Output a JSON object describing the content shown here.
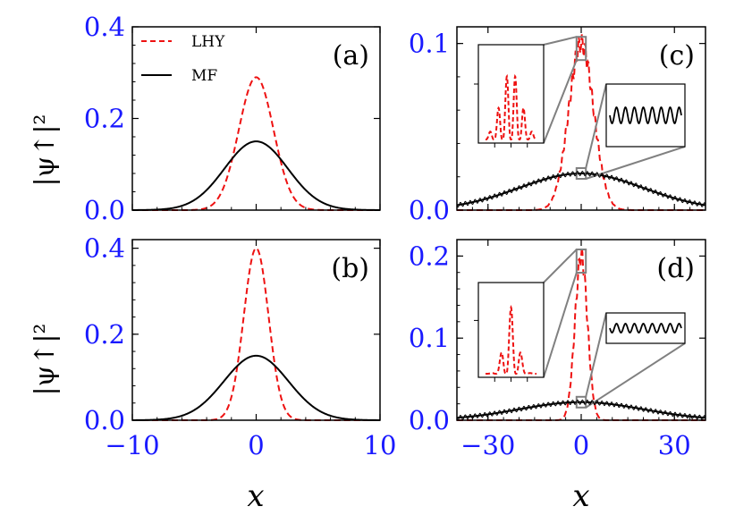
{
  "figure": {
    "ylabel": "|ψ↑|²",
    "xlabel": "x"
  },
  "colors": {
    "lhy": "#ee1111",
    "mf": "#000000",
    "tick_text": "#1a1aff",
    "inset_box": "#808080"
  },
  "legend": {
    "lhy": "LHY",
    "mf": "MF"
  },
  "chart_data": [
    {
      "panel": "(a)",
      "type": "line",
      "xlim": [
        -10,
        10
      ],
      "ylim": [
        0,
        0.4
      ],
      "xticks": [
        -10,
        0,
        10
      ],
      "xtick_labels": [
        "",
        "",
        ""
      ],
      "yticks": [
        0,
        0.2,
        0.4
      ],
      "ytick_labels": [
        "0.0",
        "0.2",
        "0.4"
      ],
      "series": [
        {
          "name": "LHY",
          "style": "dashed",
          "model": "gaussian",
          "amplitude": 0.29,
          "width": 1.4
        },
        {
          "name": "MF",
          "style": "solid",
          "model": "gaussian",
          "amplitude": 0.15,
          "width": 2.55
        }
      ]
    },
    {
      "panel": "(b)",
      "type": "line",
      "xlim": [
        -10,
        10
      ],
      "ylim": [
        0,
        0.42
      ],
      "xticks": [
        -10,
        0,
        10
      ],
      "xtick_labels": [
        "−10",
        "0",
        "10"
      ],
      "yticks": [
        0,
        0.2,
        0.4
      ],
      "ytick_labels": [
        "0.0",
        "0.2",
        "0.4"
      ],
      "series": [
        {
          "name": "LHY",
          "style": "dashed",
          "model": "gaussian",
          "amplitude": 0.4,
          "width": 1.0
        },
        {
          "name": "MF",
          "style": "solid",
          "model": "gaussian",
          "amplitude": 0.15,
          "width": 2.6
        }
      ]
    },
    {
      "panel": "(c)",
      "type": "line",
      "xlim": [
        -40,
        40
      ],
      "ylim": [
        0,
        0.11
      ],
      "xticks": [
        -30,
        0,
        30
      ],
      "xtick_labels": [
        "",
        "",
        ""
      ],
      "yticks": [
        0,
        0.1
      ],
      "ytick_labels": [
        "0.0",
        "0.1"
      ],
      "series": [
        {
          "name": "LHY",
          "style": "dashed",
          "model": "gaussian",
          "amplitude": 0.1,
          "width": 4.0
        },
        {
          "name": "MF",
          "style": "solid",
          "model": "gaussian",
          "amplitude": 0.022,
          "width": 20.0
        }
      ]
    },
    {
      "panel": "(d)",
      "type": "line",
      "xlim": [
        -40,
        40
      ],
      "ylim": [
        0,
        0.22
      ],
      "xticks": [
        -30,
        0,
        30
      ],
      "xtick_labels": [
        "−30",
        "0",
        "30"
      ],
      "yticks": [
        0,
        0.1,
        0.2
      ],
      "ytick_labels": [
        "0.0",
        "0.1",
        "0.2"
      ],
      "series": [
        {
          "name": "LHY",
          "style": "dashed",
          "model": "gaussian",
          "amplitude": 0.2,
          "width": 2.0
        },
        {
          "name": "MF",
          "style": "solid",
          "model": "gaussian",
          "amplitude": 0.022,
          "width": 20.0
        }
      ]
    }
  ]
}
